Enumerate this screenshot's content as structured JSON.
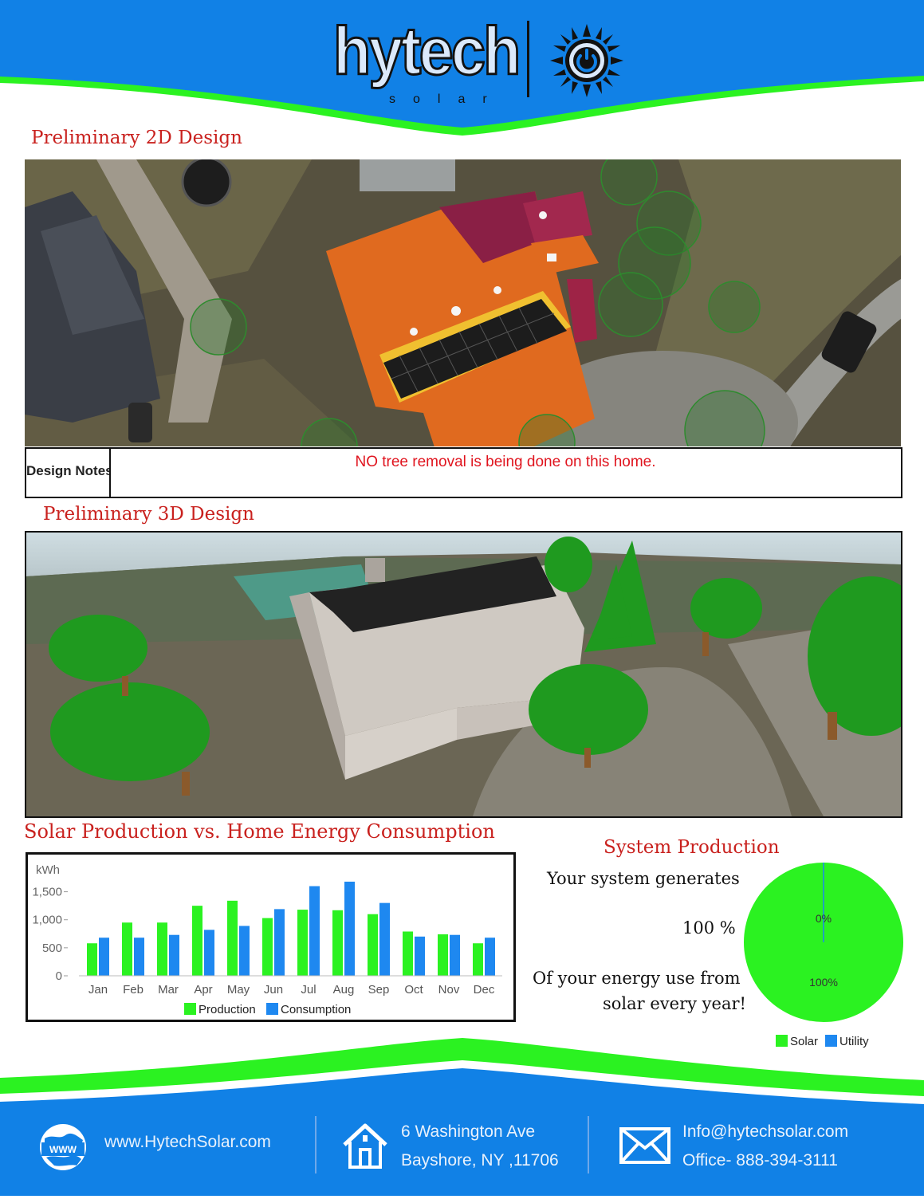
{
  "brand": {
    "name": "hytech",
    "tagline": "solar",
    "colors": {
      "blue": "#1181e6",
      "green": "#2bf221",
      "title_red": "#c9211e",
      "note_red": "#e0141e"
    }
  },
  "design2d": {
    "title": "Preliminary 2D Design",
    "notes_label": "Design Notes:",
    "notes_text": "NO tree removal is being done on this home."
  },
  "design3d": {
    "title": "Preliminary 3D Design"
  },
  "production_chart": {
    "title": "Solar Production vs. Home Energy Consumption"
  },
  "chart_data": [
    {
      "type": "bar",
      "title": "Solar Production vs. Home Energy Consumption",
      "ylabel": "kWh",
      "xlabel": "",
      "categories": [
        "Jan",
        "Feb",
        "Mar",
        "Apr",
        "May",
        "Jun",
        "Jul",
        "Aug",
        "Sep",
        "Oct",
        "Nov",
        "Dec"
      ],
      "series": [
        {
          "name": "Production",
          "color": "#2bf221",
          "values": [
            580,
            950,
            950,
            1250,
            1340,
            1030,
            1180,
            1170,
            1100,
            790,
            740,
            580
          ]
        },
        {
          "name": "Consumption",
          "color": "#1e88f0",
          "values": [
            680,
            680,
            730,
            820,
            890,
            1190,
            1600,
            1680,
            1300,
            700,
            730,
            680
          ]
        }
      ],
      "yticks": [
        "0",
        "500",
        "1,000",
        "1,500"
      ],
      "ylim": [
        0,
        1850
      ],
      "legend": "bottom",
      "grid": false
    },
    {
      "type": "pie",
      "title": "",
      "categories": [
        "Solar",
        "Utility"
      ],
      "values": [
        100,
        0
      ],
      "labels": [
        "100%",
        "0%"
      ],
      "colors": [
        "#2bf221",
        "#1e88f0"
      ],
      "legend": "bottom"
    }
  ],
  "system_production": {
    "title": "System Production",
    "line1": "Your system generates",
    "percent": "100 %",
    "line2": "Of your energy use from",
    "line3": "solar every year!"
  },
  "footer": {
    "web_icon_text": "WWW",
    "website": "www.HytechSolar.com",
    "address_line1": "6 Washington Ave",
    "address_line2": "Bayshore, NY ,11706",
    "email": "Info@hytechsolar.com",
    "phone": "Office- 888-394-3111"
  }
}
